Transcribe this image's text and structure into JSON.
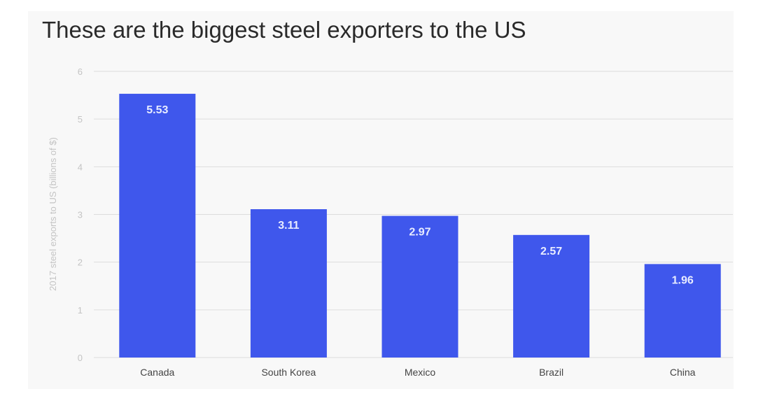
{
  "chart_data": {
    "type": "bar",
    "title": "These are the biggest steel exporters to the US",
    "xlabel": "",
    "ylabel": "2017 steel exports to US (billions of $)",
    "categories": [
      "Canada",
      "South Korea",
      "Mexico",
      "Brazil",
      "China"
    ],
    "values": [
      5.53,
      3.11,
      2.97,
      2.57,
      1.96
    ],
    "data_labels": [
      "5.53",
      "3.11",
      "2.97",
      "2.57",
      "1.96"
    ],
    "ylim": [
      0,
      6
    ],
    "yticks": [
      0,
      1,
      2,
      3,
      4,
      5,
      6
    ],
    "grid": true,
    "legend": "none",
    "bar_color": "#3f57ec"
  }
}
